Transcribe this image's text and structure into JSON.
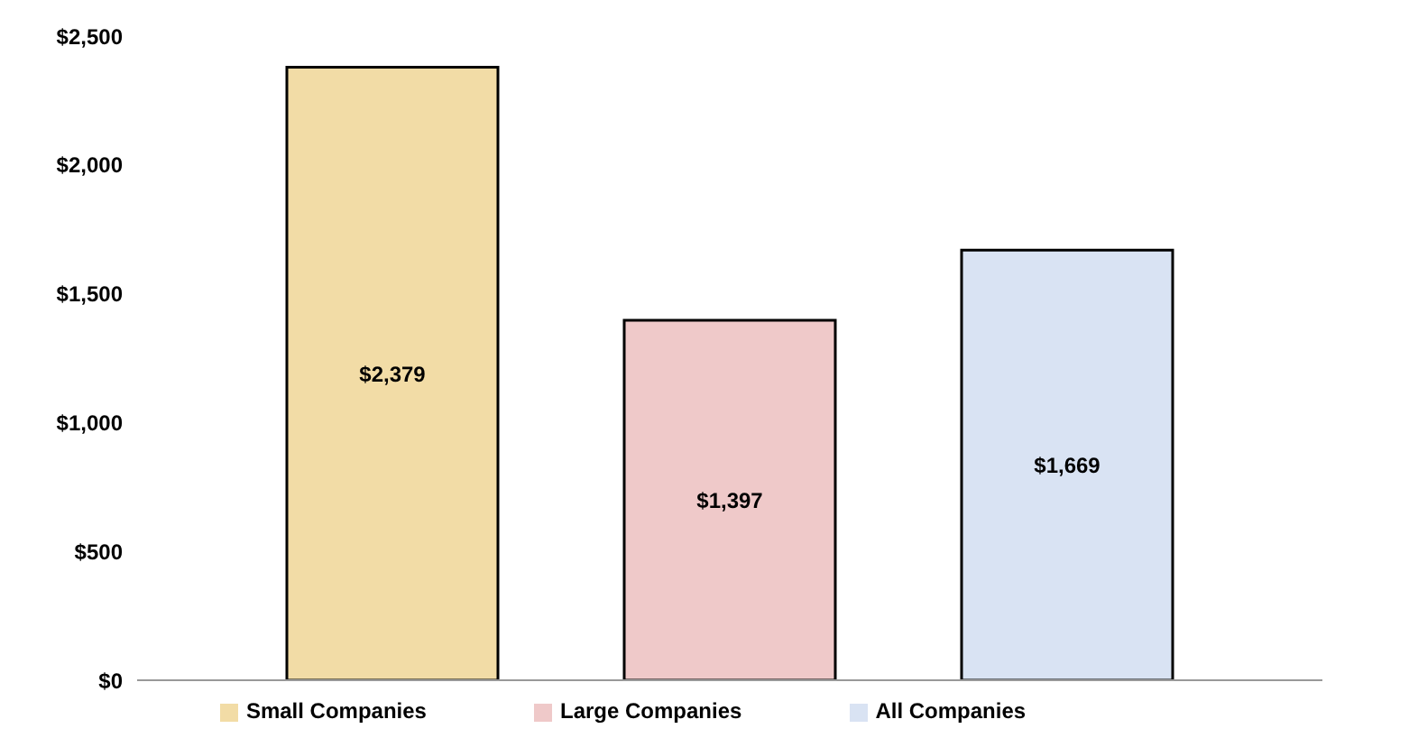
{
  "chart_data": {
    "type": "bar",
    "categories": [
      null
    ],
    "series": [
      {
        "name": "Small Companies",
        "color": "#f2dca6",
        "values": [
          2379
        ],
        "value_labels": [
          "$2,379"
        ]
      },
      {
        "name": "Large Companies",
        "color": "#efc9c9",
        "values": [
          1397
        ],
        "value_labels": [
          "$1,397"
        ]
      },
      {
        "name": "All Companies",
        "color": "#d9e3f3",
        "values": [
          1669
        ],
        "value_labels": [
          "$1,669"
        ]
      }
    ],
    "ylim": [
      0,
      2500
    ],
    "yticks": [
      {
        "value": 0,
        "label": "$0"
      },
      {
        "value": 500,
        "label": "$500"
      },
      {
        "value": 1000,
        "label": "$1,000"
      },
      {
        "value": 1500,
        "label": "$1,500"
      },
      {
        "value": 2000,
        "label": "$2,000"
      },
      {
        "value": 2500,
        "label": "$2,500"
      }
    ],
    "grid": false,
    "legend": "bottom"
  }
}
